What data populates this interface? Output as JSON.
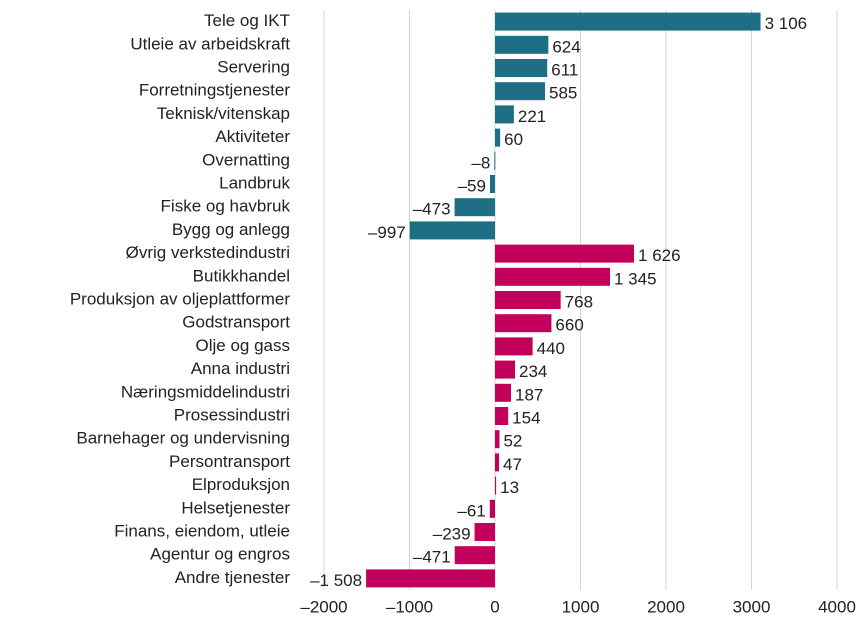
{
  "chart_data": {
    "type": "bar",
    "orientation": "horizontal",
    "categories": [
      "Tele og IKT",
      "Utleie av arbeidskraft",
      "Servering",
      "Forretningstjenester",
      "Teknisk/vitenskap",
      "Aktiviteter",
      "Overnatting",
      "Landbruk",
      "Fiske og havbruk",
      "Bygg og anlegg",
      "Øvrig verkstedindustri",
      "Butikkhandel",
      "Produksjon av oljeplattformer",
      "Godstransport",
      "Olje og gass",
      "Anna industri",
      "Næringsmiddelindustri",
      "Prosessindustri",
      "Barnehager og undervisning",
      "Persontransport",
      "Elproduksjon",
      "Helsetjenester",
      "Finans, eiendom, utleie",
      "Agentur og engros",
      "Andre tjenester"
    ],
    "values": [
      3106,
      624,
      611,
      585,
      221,
      60,
      -8,
      -59,
      -473,
      -997,
      1626,
      1345,
      768,
      660,
      440,
      234,
      187,
      154,
      52,
      47,
      13,
      -61,
      -239,
      -471,
      -1508
    ],
    "value_labels": [
      "3 106",
      "624",
      "611",
      "585",
      "221",
      "60",
      "–8",
      "–59",
      "–473",
      "–997",
      "1 626",
      "1 345",
      "768",
      "660",
      "440",
      "234",
      "187",
      "154",
      "52",
      "47",
      "13",
      "–61",
      "–239",
      "–471",
      "–1 508"
    ],
    "colors": [
      "#1e6f86",
      "#1e6f86",
      "#1e6f86",
      "#1e6f86",
      "#1e6f86",
      "#1e6f86",
      "#1e6f86",
      "#1e6f86",
      "#1e6f86",
      "#1e6f86",
      "#c2005b",
      "#c2005b",
      "#c2005b",
      "#c2005b",
      "#c2005b",
      "#c2005b",
      "#c2005b",
      "#c2005b",
      "#c2005b",
      "#c2005b",
      "#c2005b",
      "#c2005b",
      "#c2005b",
      "#c2005b",
      "#c2005b"
    ],
    "xlim": [
      -2000,
      4000
    ],
    "xticks": [
      {
        "value": -2000,
        "label": "–2000"
      },
      {
        "value": -1000,
        "label": "–1000"
      },
      0,
      1000,
      2000,
      3000,
      4000
    ],
    "grid": true
  }
}
